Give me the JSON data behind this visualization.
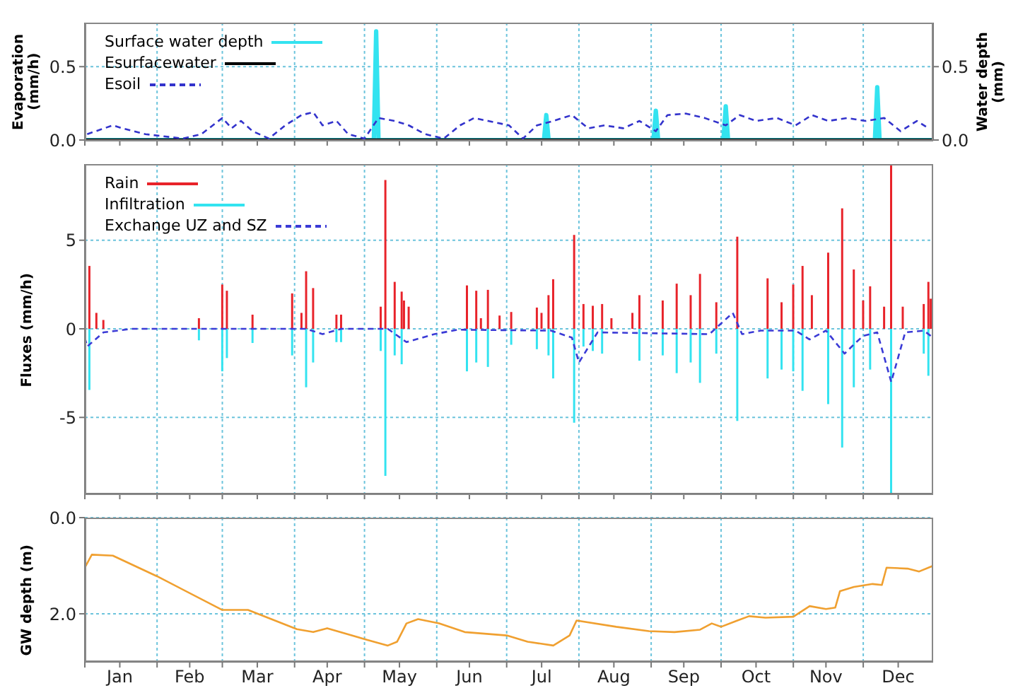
{
  "chart_data": [
    {
      "type": "line",
      "ylabel": "Evaporation (mm/h)",
      "y2label": "Water depth (mm)",
      "xlim": [
        "--01-01",
        "--12-31"
      ],
      "xticks": [
        {
          "value": "--01-01",
          "label": null
        },
        {
          "value": "--01-16",
          "label": "Jan"
        },
        {
          "value": "--02-01",
          "label": null
        },
        {
          "value": "--02-15",
          "label": "Feb"
        },
        {
          "value": "--03-01",
          "label": null
        },
        {
          "value": "--03-16",
          "label": "Mar"
        },
        {
          "value": "--04-01",
          "label": null
        },
        {
          "value": "--04-15",
          "label": "Apr"
        },
        {
          "value": "--05-01",
          "label": null
        },
        {
          "value": "--05-16",
          "label": "May"
        },
        {
          "value": "--06-01",
          "label": null
        },
        {
          "value": "--06-15",
          "label": "Jun"
        },
        {
          "value": "--07-01",
          "label": null
        },
        {
          "value": "--07-16",
          "label": "Jul"
        },
        {
          "value": "--08-01",
          "label": null
        },
        {
          "value": "--08-16",
          "label": "Aug"
        },
        {
          "value": "--09-01",
          "label": null
        },
        {
          "value": "--09-15",
          "label": "Sep"
        },
        {
          "value": "--10-01",
          "label": null
        },
        {
          "value": "--10-16",
          "label": "Oct"
        },
        {
          "value": "--11-01",
          "label": null
        },
        {
          "value": "--11-15",
          "label": "Nov"
        },
        {
          "value": "--12-01",
          "label": null
        },
        {
          "value": "--12-16",
          "label": "Dec"
        }
      ],
      "ylim": [
        0,
        0.8
      ],
      "yticks": [
        {
          "value": 0,
          "label": "0.0"
        },
        {
          "value": 0.5,
          "label": "0.5"
        }
      ],
      "y2lim": [
        0,
        0.8
      ],
      "y2ticks": [
        {
          "value": 0,
          "label": "0.0"
        },
        {
          "value": 0.5,
          "label": "0.5"
        }
      ],
      "grid": true,
      "legend": "top left",
      "tick_labels": "y",
      "marker": "none",
      "series": [
        {
          "name": "Surface water depth",
          "color": "#33e3f0",
          "axis": "y2",
          "x": [
            "--01-01",
            "--05-05",
            "--05-06",
            "--05-07",
            "--07-17",
            "--07-18",
            "--07-19",
            "--09-02",
            "--09-03",
            "--09-04",
            "--10-02",
            "--10-03",
            "--10-04",
            "--12-06",
            "--12-07",
            "--12-08",
            "--12-31"
          ],
          "values": [
            0,
            0,
            0.74,
            0,
            0,
            0.17,
            0,
            0,
            0.2,
            0,
            0,
            0.23,
            0,
            0,
            0.36,
            0,
            0
          ]
        },
        {
          "name": "Esurfacewater",
          "color": "#000000",
          "x": [
            "--01-01",
            "--12-31"
          ],
          "values": [
            0,
            0
          ]
        },
        {
          "name": "Esoil",
          "color": "#3333cc",
          "line_style": "dashed",
          "x": [
            "--01-02",
            "--01-13",
            "--01-17",
            "--01-27",
            "--02-12",
            "--02-20",
            "--03-01",
            "--03-05",
            "--03-09",
            "--03-14",
            "--03-21",
            "--03-28",
            "--04-04",
            "--04-09",
            "--04-13",
            "--04-19",
            "--04-24",
            "--05-01",
            "--05-07",
            "--05-14",
            "--05-20",
            "--05-27",
            "--06-04",
            "--06-11",
            "--06-17",
            "--06-23",
            "--07-02",
            "--07-08",
            "--07-14",
            "--07-21",
            "--07-29",
            "--08-05",
            "--08-12",
            "--08-20",
            "--08-27",
            "--09-03",
            "--09-08",
            "--09-16",
            "--09-24",
            "--10-03",
            "--10-09",
            "--10-16",
            "--10-25",
            "--11-02",
            "--11-09",
            "--11-16",
            "--11-24",
            "--12-02",
            "--12-10",
            "--12-17",
            "--12-24",
            "--12-29"
          ],
          "values": [
            0.04,
            0.1,
            0.08,
            0.04,
            0.01,
            0.04,
            0.15,
            0.08,
            0.13,
            0.06,
            0.01,
            0.1,
            0.17,
            0.19,
            0.1,
            0.13,
            0.04,
            0.01,
            0.15,
            0.13,
            0.1,
            0.04,
            0.01,
            0.1,
            0.15,
            0.13,
            0.1,
            0.01,
            0.1,
            0.13,
            0.17,
            0.08,
            0.1,
            0.08,
            0.13,
            0.06,
            0.17,
            0.18,
            0.15,
            0.1,
            0.17,
            0.13,
            0.15,
            0.1,
            0.17,
            0.13,
            0.15,
            0.13,
            0.15,
            0.06,
            0.13,
            0.08
          ]
        }
      ]
    },
    {
      "type": "bar",
      "ylabel": "Fluxes (mm/h)",
      "xlim": [
        "--01-01",
        "--12-31"
      ],
      "xticks": [
        {
          "value": "--01-01",
          "label": null
        },
        {
          "value": "--01-16",
          "label": "Jan"
        },
        {
          "value": "--02-01",
          "label": null
        },
        {
          "value": "--02-15",
          "label": "Feb"
        },
        {
          "value": "--03-01",
          "label": null
        },
        {
          "value": "--03-16",
          "label": "Mar"
        },
        {
          "value": "--04-01",
          "label": null
        },
        {
          "value": "--04-15",
          "label": "Apr"
        },
        {
          "value": "--05-01",
          "label": null
        },
        {
          "value": "--05-16",
          "label": "May"
        },
        {
          "value": "--06-01",
          "label": null
        },
        {
          "value": "--06-15",
          "label": "Jun"
        },
        {
          "value": "--07-01",
          "label": null
        },
        {
          "value": "--07-16",
          "label": "Jul"
        },
        {
          "value": "--08-01",
          "label": null
        },
        {
          "value": "--08-16",
          "label": "Aug"
        },
        {
          "value": "--09-01",
          "label": null
        },
        {
          "value": "--09-15",
          "label": "Sep"
        },
        {
          "value": "--10-01",
          "label": null
        },
        {
          "value": "--10-16",
          "label": "Oct"
        },
        {
          "value": "--11-01",
          "label": null
        },
        {
          "value": "--11-15",
          "label": "Nov"
        },
        {
          "value": "--12-01",
          "label": null
        },
        {
          "value": "--12-16",
          "label": "Dec"
        }
      ],
      "ylim": [
        -9.3,
        9.3
      ],
      "yticks": [
        -5,
        0,
        5
      ],
      "grid": true,
      "legend": "top left",
      "tick_labels": "y",
      "marker": "none",
      "series": [
        {
          "name": "Rain",
          "color": "#e8232a",
          "x": [
            "--01-03",
            "--01-06",
            "--01-09",
            "--02-19",
            "--03-01",
            "--03-03",
            "--03-14",
            "--03-31",
            "--04-04",
            "--04-06",
            "--04-09",
            "--04-19",
            "--04-21",
            "--05-08",
            "--05-10",
            "--05-14",
            "--05-17",
            "--05-18",
            "--05-20",
            "--06-14",
            "--06-18",
            "--06-20",
            "--06-23",
            "--06-28",
            "--07-03",
            "--07-14",
            "--07-16",
            "--07-19",
            "--07-21",
            "--07-30",
            "--08-03",
            "--08-07",
            "--08-11",
            "--08-15",
            "--08-24",
            "--08-27",
            "--09-06",
            "--09-12",
            "--09-18",
            "--09-22",
            "--09-29",
            "--10-08",
            "--10-21",
            "--10-27",
            "--11-01",
            "--11-05",
            "--11-09",
            "--11-16",
            "--11-22",
            "--11-27",
            "--12-01",
            "--12-04",
            "--12-10",
            "--12-13",
            "--12-18",
            "--12-27",
            "--12-29",
            "--12-30"
          ],
          "values": [
            3.55,
            0.9,
            0.5,
            0.6,
            2.5,
            2.15,
            0.8,
            2.0,
            0.9,
            3.25,
            2.3,
            0.8,
            0.8,
            1.25,
            8.4,
            2.65,
            2.1,
            1.6,
            1.25,
            2.45,
            2.15,
            0.6,
            2.2,
            0.75,
            0.95,
            1.2,
            0.9,
            1.9,
            2.8,
            5.3,
            1.4,
            1.3,
            1.4,
            0.6,
            0.9,
            1.9,
            1.6,
            2.55,
            1.9,
            3.1,
            1.5,
            5.2,
            2.85,
            1.5,
            2.5,
            3.55,
            1.9,
            4.3,
            6.8,
            3.35,
            1.6,
            2.4,
            1.25,
            9.3,
            1.25,
            1.4,
            2.65,
            1.7
          ]
        },
        {
          "name": "Infiltration",
          "color": "#33e3f0",
          "x": [
            "--01-03",
            "--02-19",
            "--03-01",
            "--03-03",
            "--03-14",
            "--03-31",
            "--04-06",
            "--04-09",
            "--04-19",
            "--04-21",
            "--05-08",
            "--05-10",
            "--05-14",
            "--05-17",
            "--06-14",
            "--06-18",
            "--06-23",
            "--07-03",
            "--07-14",
            "--07-19",
            "--07-21",
            "--07-30",
            "--08-03",
            "--08-07",
            "--08-11",
            "--08-27",
            "--09-06",
            "--09-12",
            "--09-18",
            "--09-22",
            "--09-29",
            "--10-08",
            "--10-21",
            "--10-27",
            "--11-01",
            "--11-05",
            "--11-16",
            "--11-22",
            "--11-27",
            "--12-04",
            "--12-13",
            "--12-27",
            "--12-29"
          ],
          "values": [
            -3.45,
            -0.65,
            -2.4,
            -1.65,
            -0.8,
            -1.5,
            -3.3,
            -1.9,
            -0.75,
            -0.75,
            -1.25,
            -8.3,
            -1.5,
            -2.0,
            -2.4,
            -1.9,
            -2.15,
            -0.9,
            -1.15,
            -1.5,
            -2.8,
            -5.3,
            -1.0,
            -1.25,
            -1.4,
            -1.8,
            -1.5,
            -2.5,
            -1.9,
            -3.05,
            -1.4,
            -5.2,
            -2.8,
            -2.3,
            -2.4,
            -3.5,
            -4.25,
            -6.7,
            -3.3,
            -2.3,
            -9.3,
            -1.4,
            -2.65
          ]
        },
        {
          "name": "Exchange UZ and SZ",
          "type": "line",
          "color": "#3b3bd6",
          "line_style": "dashed",
          "x": [
            "--01-01",
            "--01-02",
            "--01-09",
            "--01-21",
            "--04-06",
            "--04-13",
            "--04-21",
            "--05-11",
            "--05-19",
            "--05-31",
            "--06-10",
            "--07-20",
            "--07-29",
            "--08-01",
            "--08-09",
            "--09-26",
            "--10-06",
            "--10-10",
            "--10-18",
            "--11-02",
            "--11-08",
            "--11-15",
            "--11-23",
            "--11-28",
            "--12-01",
            "--12-07",
            "--12-13",
            "--12-19",
            "--12-27",
            "--12-31"
          ],
          "values": [
            -0.5,
            -1.0,
            -0.2,
            0,
            0,
            -0.3,
            0,
            0,
            -0.75,
            -0.3,
            -0.05,
            -0.1,
            -0.5,
            -1.9,
            -0.2,
            -0.3,
            0.9,
            -0.3,
            -0.1,
            -0.1,
            -0.6,
            -0.1,
            -1.4,
            -0.75,
            -0.4,
            -0.2,
            -3.0,
            -0.2,
            -0.1,
            -0.5
          ]
        }
      ]
    },
    {
      "type": "line",
      "ylabel": "GW depth (m)",
      "xlim": [
        "--01-01",
        "--12-31"
      ],
      "xticks": [
        {
          "value": "--01-01",
          "label": null
        },
        {
          "value": "--01-16",
          "label": "Jan"
        },
        {
          "value": "--02-01",
          "label": null
        },
        {
          "value": "--02-15",
          "label": "Feb"
        },
        {
          "value": "--03-01",
          "label": null
        },
        {
          "value": "--03-16",
          "label": "Mar"
        },
        {
          "value": "--04-01",
          "label": null
        },
        {
          "value": "--04-15",
          "label": "Apr"
        },
        {
          "value": "--05-01",
          "label": null
        },
        {
          "value": "--05-16",
          "label": "May"
        },
        {
          "value": "--06-01",
          "label": null
        },
        {
          "value": "--06-15",
          "label": "Jun"
        },
        {
          "value": "--07-01",
          "label": null
        },
        {
          "value": "--07-16",
          "label": "Jul"
        },
        {
          "value": "--08-01",
          "label": null
        },
        {
          "value": "--08-16",
          "label": "Aug"
        },
        {
          "value": "--09-01",
          "label": null
        },
        {
          "value": "--09-15",
          "label": "Sep"
        },
        {
          "value": "--10-01",
          "label": null
        },
        {
          "value": "--10-16",
          "label": "Oct"
        },
        {
          "value": "--11-01",
          "label": null
        },
        {
          "value": "--11-15",
          "label": "Nov"
        },
        {
          "value": "--12-01",
          "label": null
        },
        {
          "value": "--12-16",
          "label": "Dec"
        }
      ],
      "ylim": [
        3.0,
        0
      ],
      "yticks": [
        {
          "value": 0,
          "label": "0.0"
        },
        {
          "value": 2,
          "label": "2.0"
        }
      ],
      "grid": true,
      "marker": "none",
      "series": [
        {
          "color": "#f0a030",
          "x": [
            "--01-01",
            "--01-04",
            "--01-13",
            "--02-01",
            "--03-01",
            "--03-12",
            "--04-02",
            "--04-09",
            "--04-15",
            "--05-02",
            "--05-11",
            "--05-15",
            "--05-19",
            "--05-24",
            "--06-02",
            "--06-13",
            "--07-01",
            "--07-10",
            "--07-21",
            "--07-28",
            "--07-31",
            "--08-17",
            "--08-31",
            "--09-11",
            "--09-22",
            "--09-27",
            "--10-01",
            "--10-08",
            "--10-13",
            "--10-20",
            "--11-01",
            "--11-08",
            "--11-15",
            "--11-19",
            "--11-21",
            "--11-27",
            "--12-05",
            "--12-09",
            "--12-11",
            "--12-20",
            "--12-25",
            "--12-31"
          ],
          "values": [
            1.04,
            0.77,
            0.79,
            1.22,
            1.92,
            1.92,
            2.32,
            2.38,
            2.3,
            2.54,
            2.66,
            2.58,
            2.2,
            2.11,
            2.2,
            2.38,
            2.45,
            2.58,
            2.66,
            2.45,
            2.14,
            2.27,
            2.36,
            2.38,
            2.33,
            2.2,
            2.27,
            2.14,
            2.05,
            2.08,
            2.06,
            1.84,
            1.9,
            1.87,
            1.53,
            1.44,
            1.38,
            1.4,
            1.04,
            1.06,
            1.12,
            1.0
          ]
        }
      ]
    }
  ]
}
